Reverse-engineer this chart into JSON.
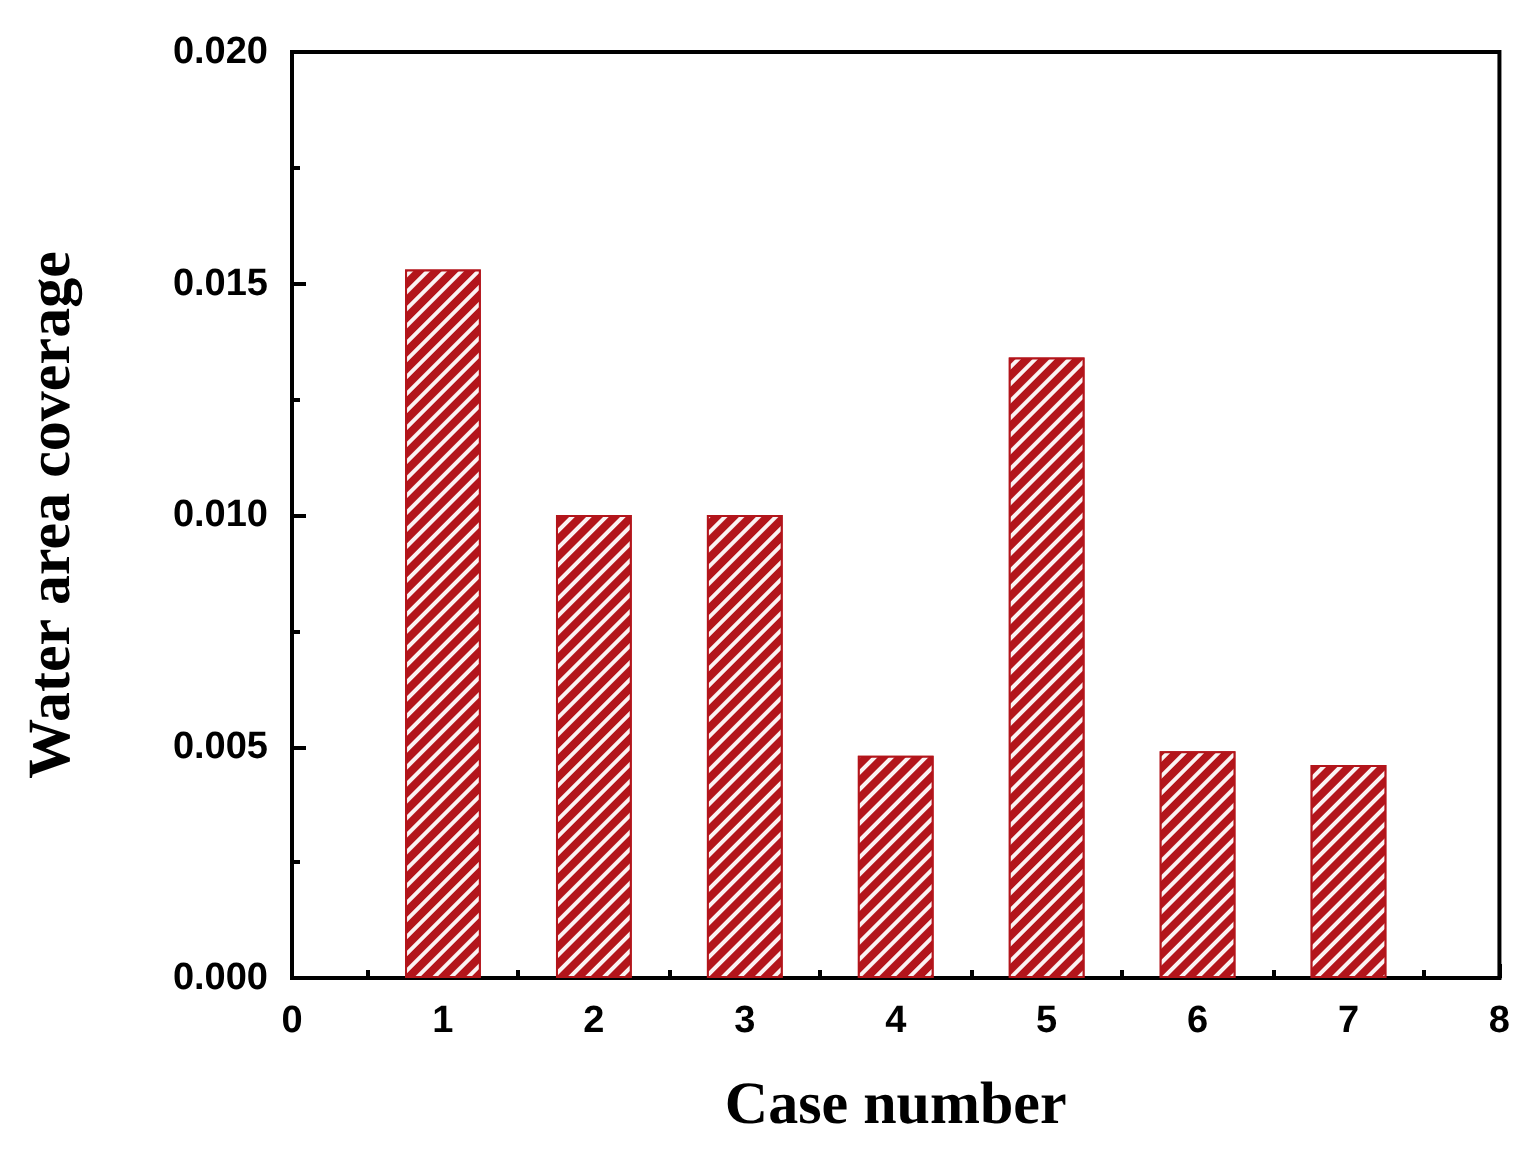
{
  "chart_data": {
    "type": "bar",
    "xlabel": "Case number",
    "ylabel": "Water area coverage",
    "x": [
      1,
      2,
      3,
      4,
      5,
      6,
      7
    ],
    "values": [
      0.0153,
      0.01,
      0.01,
      0.0048,
      0.0134,
      0.0049,
      0.0046
    ],
    "color": "#b3151b",
    "xlim": [
      0,
      8
    ],
    "xticks": [
      0,
      1,
      2,
      3,
      4,
      5,
      6,
      7,
      8
    ],
    "ylim": [
      0,
      0.02
    ],
    "yticks": [
      {
        "value": 0,
        "label": "0.000"
      },
      0.005,
      {
        "value": 0.01,
        "label": "0.010"
      },
      0.015,
      {
        "value": 0.02,
        "label": "0.020"
      }
    ],
    "grid": false
  }
}
